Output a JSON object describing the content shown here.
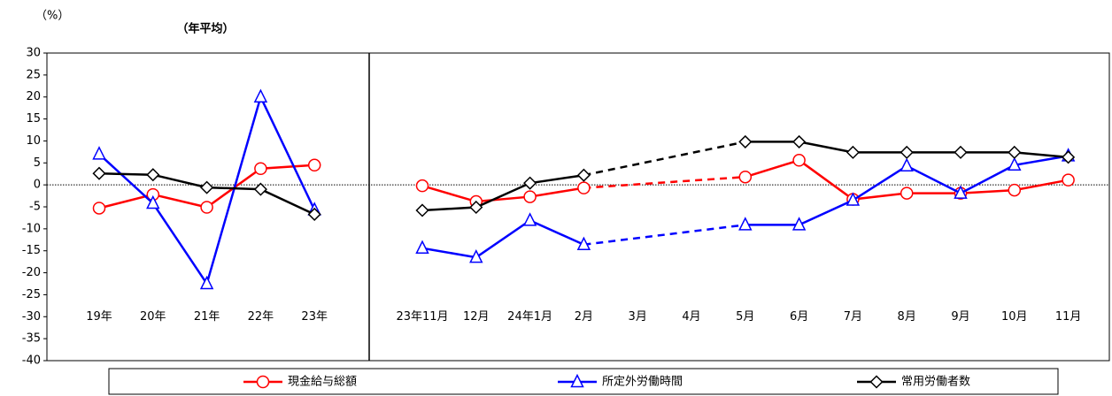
{
  "chart_data": [
    {
      "type": "line",
      "title": "（年平均）",
      "y_label": "（%）",
      "ylim": [
        -40,
        30
      ],
      "yticks": [
        30,
        25,
        20,
        15,
        10,
        5,
        0,
        -5,
        -10,
        -15,
        -20,
        -25,
        -30,
        -35,
        -40
      ],
      "zero_line": true,
      "categories": [
        "19年",
        "20年",
        "21年",
        "22年",
        "23年"
      ],
      "series": [
        {
          "name": "現金給与総額",
          "color": "#ff0000",
          "marker": "circle",
          "values": [
            -5.3,
            -2.2,
            -5.1,
            3.7,
            4.5
          ]
        },
        {
          "name": "所定外労働時間",
          "color": "#0000ff",
          "marker": "triangle",
          "values": [
            7.0,
            -4.2,
            -22.5,
            20.0,
            -5.7
          ]
        },
        {
          "name": "常用労働者数",
          "color": "#000000",
          "marker": "diamond",
          "values": [
            2.6,
            2.3,
            -0.6,
            -1.0,
            -6.7
          ]
        }
      ]
    },
    {
      "type": "line",
      "gap_style": "dashed",
      "categories": [
        "23年11月",
        "12月",
        "24年1月",
        "2月",
        "3月",
        "4月",
        "5月",
        "6月",
        "7月",
        "8月",
        "9月",
        "10月",
        "11月"
      ],
      "series": [
        {
          "color": "#ff0000",
          "marker": "circle",
          "values": [
            -0.2,
            -3.8,
            -2.7,
            -0.7,
            null,
            null,
            1.8,
            5.6,
            -3.3,
            -1.9,
            -1.9,
            -1.2,
            1.1
          ]
        },
        {
          "color": "#0000ff",
          "marker": "triangle",
          "values": [
            -14.4,
            -16.5,
            -8.1,
            -13.6,
            null,
            null,
            -9.1,
            -9.1,
            -3.5,
            4.3,
            -1.9,
            4.5,
            6.6
          ]
        },
        {
          "color": "#000000",
          "marker": "diamond",
          "values": [
            -5.8,
            -5.1,
            0.4,
            2.2,
            null,
            null,
            9.8,
            9.8,
            7.4,
            7.4,
            7.4,
            7.4,
            6.3
          ]
        }
      ]
    }
  ]
}
